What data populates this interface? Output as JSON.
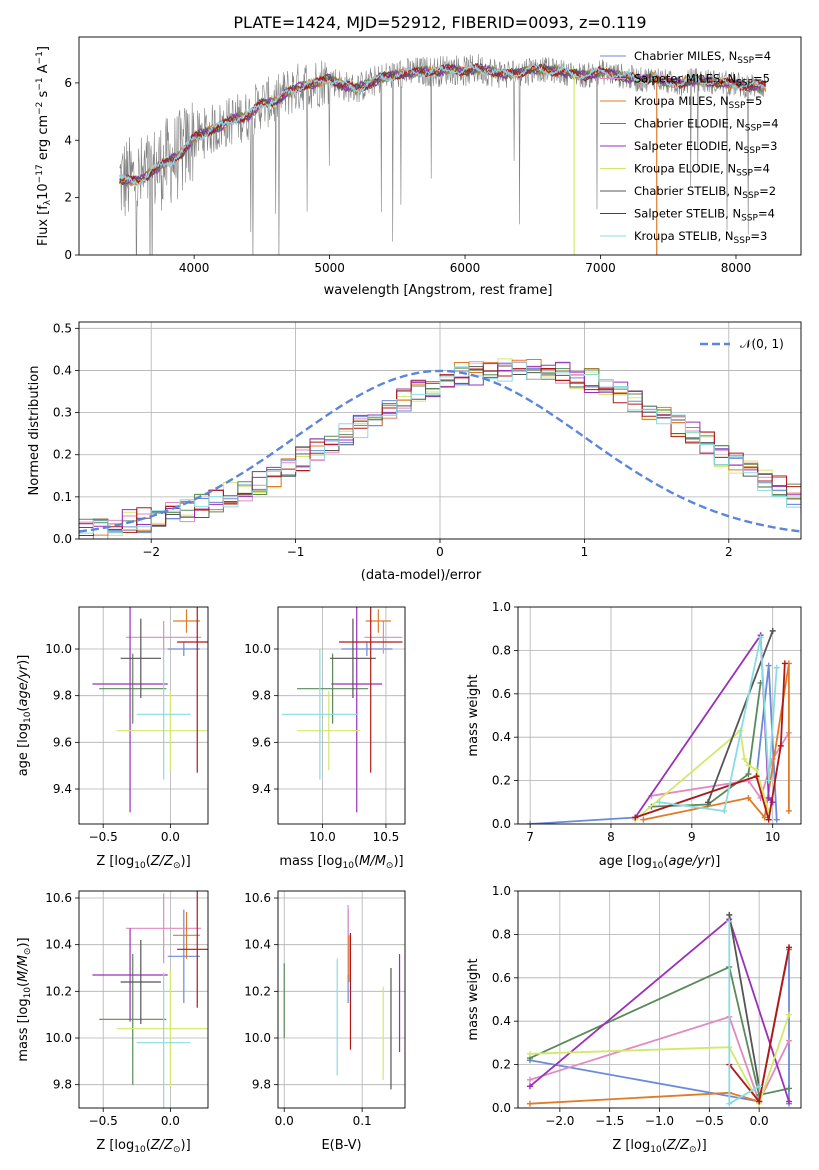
{
  "figure_title": "PLATE=1424, MJD=52912, FIBERID=0093, z=0.119",
  "colors": {
    "Chabrier MILES": "#6b8ad9",
    "Salpeter MILES": "#e28ac0",
    "Kroupa MILES": "#e07b28",
    "Chabrier ELODIE": "#5a8a5a",
    "Salpeter ELODIE": "#9b30b8",
    "Kroupa ELODIE": "#d4e86a",
    "Chabrier STELIB": "#555555",
    "Salpeter STELIB": "#b01818",
    "Kroupa STELIB": "#88dde0",
    "data": "#808080",
    "normal": "#5b86d9"
  },
  "chart_data": [
    {
      "id": "spectrum",
      "type": "line",
      "xlabel": "wavelength [Angstrom, rest frame]",
      "ylabel": "Flux [f",
      "xlim": [
        3150,
        8480
      ],
      "ylim": [
        0,
        7.6
      ],
      "xticks": [
        4000,
        5000,
        6000,
        7000,
        8000
      ],
      "yticks": [
        0,
        2,
        4,
        6
      ],
      "grid": false,
      "legend_position": "top-right",
      "legend": [
        {
          "model": "Chabrier MILES",
          "label": "Chabrier MILES, N",
          "n": "=4"
        },
        {
          "model": "Salpeter MILES",
          "label": "Salpeter MILES, N",
          "n": "=5"
        },
        {
          "model": "Kroupa MILES",
          "label": "Kroupa MILES, N",
          "n": "=5"
        },
        {
          "model": "Chabrier ELODIE",
          "label": "Chabrier ELODIE, N",
          "n": "=4"
        },
        {
          "model": "Salpeter ELODIE",
          "label": "Salpeter ELODIE, N",
          "n": "=3"
        },
        {
          "model": "Kroupa ELODIE",
          "label": "Kroupa ELODIE, N",
          "n": "=4"
        },
        {
          "model": "Chabrier STELIB",
          "label": "Chabrier STELIB, N",
          "n": "=2"
        },
        {
          "model": "Salpeter STELIB",
          "label": "Salpeter STELIB, N",
          "n": "=4"
        },
        {
          "model": "Kroupa STELIB",
          "label": "Kroupa STELIB, N",
          "n": "=3"
        }
      ],
      "model_curve": {
        "x": [
          3450,
          3600,
          3750,
          3900,
          4000,
          4100,
          4200,
          4300,
          4400,
          4500,
          4600,
          4700,
          4800,
          4900,
          5000,
          5100,
          5200,
          5300,
          5400,
          5500,
          5600,
          5700,
          5800,
          5900,
          6000,
          6100,
          6200,
          6300,
          6400,
          6500,
          6600,
          6700,
          6800,
          6900,
          7000,
          7100,
          7200,
          7300,
          7400,
          7500,
          7600,
          7700,
          7800,
          7900,
          8000,
          8100,
          8220
        ],
        "y": [
          2.6,
          2.6,
          3.1,
          3.5,
          4.1,
          4.3,
          4.5,
          4.75,
          4.85,
          5.3,
          5.35,
          5.7,
          5.9,
          6.0,
          6.15,
          5.9,
          5.8,
          6.0,
          6.2,
          6.3,
          6.35,
          6.4,
          6.4,
          6.5,
          6.4,
          6.5,
          6.4,
          6.3,
          6.35,
          6.5,
          6.45,
          6.4,
          6.3,
          6.25,
          6.4,
          6.3,
          6.2,
          6.1,
          6.2,
          6.0,
          6.0,
          6.1,
          6.05,
          6.0,
          5.95,
          5.9,
          5.9
        ]
      }
    },
    {
      "id": "residuals",
      "type": "line",
      "xlabel": "(data-model)/error",
      "ylabel": "Normed distribution",
      "xlim": [
        -2.5,
        2.5
      ],
      "ylim": [
        0,
        0.515
      ],
      "xticks": [
        -2,
        -1,
        0,
        1,
        2
      ],
      "yticks": [
        0.0,
        0.1,
        0.2,
        0.3,
        0.4,
        0.5
      ],
      "grid": true,
      "legend_position": "top-right",
      "legend_label": "N(0,1)",
      "bin_width": 0.1,
      "base_hist": [
        0.02,
        0.025,
        0.03,
        0.04,
        0.045,
        0.055,
        0.065,
        0.07,
        0.08,
        0.09,
        0.105,
        0.12,
        0.135,
        0.15,
        0.17,
        0.19,
        0.21,
        0.23,
        0.25,
        0.27,
        0.29,
        0.31,
        0.33,
        0.35,
        0.36,
        0.375,
        0.39,
        0.395,
        0.4,
        0.4,
        0.405,
        0.4,
        0.4,
        0.395,
        0.385,
        0.375,
        0.36,
        0.345,
        0.33,
        0.31,
        0.29,
        0.27,
        0.25,
        0.225,
        0.2,
        0.18,
        0.16,
        0.14,
        0.12,
        0.105,
        0.09
      ]
    },
    {
      "id": "age_vs_Z",
      "type": "scatter",
      "xlabel": "Z [log",
      "ylabel": "age  [log",
      "xlim": [
        -0.68,
        0.28
      ],
      "ylim": [
        9.25,
        10.18
      ],
      "xticks": [
        -0.5,
        0.0
      ],
      "yticks": [
        9.4,
        9.6,
        9.8,
        10.0
      ],
      "grid": true,
      "points": [
        {
          "m": "Chabrier MILES",
          "x": 0.1,
          "xerr": 0.12,
          "y": 10.0,
          "yerr": 0.03
        },
        {
          "m": "Salpeter MILES",
          "x": -0.05,
          "xerr": 0.28,
          "y": 10.05,
          "yerr": 0.07
        },
        {
          "m": "Kroupa MILES",
          "x": 0.12,
          "xerr": 0.1,
          "y": 10.12,
          "yerr": 0.05
        },
        {
          "m": "Chabrier ELODIE",
          "x": -0.28,
          "xerr": 0.25,
          "y": 9.83,
          "yerr": 0.15
        },
        {
          "m": "Salpeter ELODIE",
          "x": -0.3,
          "xerr": 0.28,
          "y": 9.85,
          "yerr": 0.55
        },
        {
          "m": "Kroupa ELODIE",
          "x": 0.0,
          "xerr": 0.4,
          "y": 9.65,
          "yerr": 0.17
        },
        {
          "m": "Chabrier STELIB",
          "x": -0.22,
          "xerr": 0.15,
          "y": 9.96,
          "yerr": 0.17
        },
        {
          "m": "Salpeter STELIB",
          "x": 0.2,
          "xerr": 0.15,
          "y": 10.03,
          "yerr": 0.56
        },
        {
          "m": "Kroupa STELIB",
          "x": -0.05,
          "xerr": 0.2,
          "y": 9.72,
          "yerr": 0.28
        }
      ]
    },
    {
      "id": "age_vs_mass",
      "type": "scatter",
      "xlabel": "mass [log",
      "ylabel": "",
      "xlim": [
        9.65,
        10.65
      ],
      "ylim": [
        9.25,
        10.18
      ],
      "xticks": [
        10.0,
        10.5
      ],
      "yticks": [
        9.4,
        9.6,
        9.8,
        10.0
      ],
      "grid": true,
      "points": [
        {
          "m": "Chabrier MILES",
          "x": 10.35,
          "xerr": 0.2,
          "y": 10.0,
          "yerr": 0.03
        },
        {
          "m": "Salpeter MILES",
          "x": 10.48,
          "xerr": 0.15,
          "y": 10.05,
          "yerr": 0.07
        },
        {
          "m": "Kroupa MILES",
          "x": 10.44,
          "xerr": 0.1,
          "y": 10.12,
          "yerr": 0.05
        },
        {
          "m": "Chabrier ELODIE",
          "x": 10.08,
          "xerr": 0.28,
          "y": 9.83,
          "yerr": 0.15
        },
        {
          "m": "Salpeter ELODIE",
          "x": 10.27,
          "xerr": 0.2,
          "y": 9.85,
          "yerr": 0.55
        },
        {
          "m": "Kroupa ELODIE",
          "x": 10.05,
          "xerr": 0.25,
          "y": 9.65,
          "yerr": 0.17
        },
        {
          "m": "Chabrier STELIB",
          "x": 10.24,
          "xerr": 0.18,
          "y": 9.96,
          "yerr": 0.17
        },
        {
          "m": "Salpeter STELIB",
          "x": 10.38,
          "xerr": 0.25,
          "y": 10.03,
          "yerr": 0.56
        },
        {
          "m": "Kroupa STELIB",
          "x": 9.98,
          "xerr": 0.3,
          "y": 9.72,
          "yerr": 0.28
        }
      ]
    },
    {
      "id": "mass_weight_vs_age",
      "type": "line",
      "xlabel": "age  [log",
      "ylabel": "mass weight",
      "xlim": [
        6.85,
        10.35
      ],
      "ylim": [
        0,
        1.0
      ],
      "xticks": [
        7,
        8,
        9,
        10
      ],
      "yticks": [
        0.0,
        0.2,
        0.4,
        0.6,
        0.8,
        1.0
      ],
      "grid": true,
      "series": [
        {
          "m": "Chabrier MILES",
          "x": [
            7.0,
            8.3,
            9.8,
            9.95,
            10.05
          ],
          "y": [
            0.0,
            0.03,
            0.22,
            0.73,
            0.02
          ]
        },
        {
          "m": "Salpeter MILES",
          "x": [
            8.5,
            9.7,
            9.85,
            10.0,
            10.2
          ],
          "y": [
            0.13,
            0.2,
            0.12,
            0.3,
            0.42
          ]
        },
        {
          "m": "Kroupa MILES",
          "x": [
            8.4,
            9.7,
            9.9,
            10.2,
            10.2
          ],
          "y": [
            0.02,
            0.12,
            0.03,
            0.74,
            0.06
          ]
        },
        {
          "m": "Chabrier ELODIE",
          "x": [
            8.5,
            9.2,
            9.7,
            9.85
          ],
          "y": [
            0.08,
            0.09,
            0.23,
            0.65
          ]
        },
        {
          "m": "Salpeter ELODIE",
          "x": [
            8.3,
            9.85,
            9.95,
            10.0
          ],
          "y": [
            0.03,
            0.87,
            0.12,
            0.1
          ]
        },
        {
          "m": "Kroupa ELODIE",
          "x": [
            8.3,
            9.6,
            9.65,
            9.7,
            9.8,
            9.95
          ],
          "y": [
            0.02,
            0.43,
            0.3,
            0.27,
            0.25,
            0.06
          ]
        },
        {
          "m": "Chabrier STELIB",
          "x": [
            9.2,
            10.0
          ],
          "y": [
            0.1,
            0.89
          ]
        },
        {
          "m": "Salpeter STELIB",
          "x": [
            8.3,
            9.8,
            9.95,
            10.1,
            10.15
          ],
          "y": [
            0.03,
            0.22,
            0.02,
            0.36,
            0.74
          ]
        },
        {
          "m": "Kroupa STELIB",
          "x": [
            8.6,
            9.4,
            9.85,
            9.95,
            10.05
          ],
          "y": [
            0.1,
            0.06,
            0.86,
            0.2,
            0.72
          ]
        }
      ]
    },
    {
      "id": "mass_vs_Z",
      "type": "scatter",
      "xlabel": "Z [log",
      "ylabel": "mass [log",
      "xlim": [
        -0.68,
        0.28
      ],
      "ylim": [
        9.7,
        10.63
      ],
      "xticks": [
        -0.5,
        0.0
      ],
      "yticks": [
        9.8,
        10.0,
        10.2,
        10.4,
        10.6
      ],
      "grid": true,
      "points": [
        {
          "m": "Chabrier MILES",
          "x": 0.1,
          "xerr": 0.12,
          "y": 10.35,
          "yerr": 0.2
        },
        {
          "m": "Salpeter MILES",
          "x": -0.05,
          "xerr": 0.28,
          "y": 10.47,
          "yerr": 0.15
        },
        {
          "m": "Kroupa MILES",
          "x": 0.12,
          "xerr": 0.1,
          "y": 10.44,
          "yerr": 0.1
        },
        {
          "m": "Chabrier ELODIE",
          "x": -0.28,
          "xerr": 0.25,
          "y": 10.08,
          "yerr": 0.28
        },
        {
          "m": "Salpeter ELODIE",
          "x": -0.3,
          "xerr": 0.28,
          "y": 10.27,
          "yerr": 0.2
        },
        {
          "m": "Kroupa ELODIE",
          "x": 0.0,
          "xerr": 0.4,
          "y": 10.04,
          "yerr": 0.25
        },
        {
          "m": "Chabrier STELIB",
          "x": -0.22,
          "xerr": 0.15,
          "y": 10.24,
          "yerr": 0.18
        },
        {
          "m": "Salpeter STELIB",
          "x": 0.2,
          "xerr": 0.15,
          "y": 10.38,
          "yerr": 0.25
        },
        {
          "m": "Kroupa STELIB",
          "x": -0.05,
          "xerr": 0.2,
          "y": 9.98,
          "yerr": 0.3
        }
      ]
    },
    {
      "id": "mass_vs_ebv",
      "type": "scatter",
      "xlabel": "E(B-V)",
      "ylabel": "",
      "xlim": [
        -0.008,
        0.155
      ],
      "ylim": [
        9.7,
        10.63
      ],
      "xticks": [
        0.0,
        0.1
      ],
      "yticks": [
        9.8,
        10.0,
        10.2,
        10.4,
        10.6
      ],
      "grid": true,
      "points": [
        {
          "m": "Chabrier MILES",
          "x": 0.082,
          "y": 10.35,
          "yerr": 0.2
        },
        {
          "m": "Salpeter MILES",
          "x": 0.082,
          "y": 10.42,
          "yerr": 0.15
        },
        {
          "m": "Kroupa MILES",
          "x": 0.083,
          "y": 10.34,
          "yerr": 0.1
        },
        {
          "m": "Chabrier ELODIE",
          "x": 0.0,
          "y": 10.16,
          "yerr": 0.16
        },
        {
          "m": "Salpeter ELODIE",
          "x": 0.148,
          "y": 10.15,
          "yerr": 0.21
        },
        {
          "m": "Kroupa ELODIE",
          "x": 0.127,
          "y": 10.02,
          "yerr": 0.2
        },
        {
          "m": "Chabrier STELIB",
          "x": 0.137,
          "y": 10.04,
          "yerr": 0.26
        },
        {
          "m": "Salpeter STELIB",
          "x": 0.085,
          "y": 10.2,
          "yerr": 0.25
        },
        {
          "m": "Kroupa STELIB",
          "x": 0.068,
          "y": 10.09,
          "yerr": 0.25
        }
      ]
    },
    {
      "id": "mass_weight_vs_Z",
      "type": "line",
      "xlabel": "Z [log",
      "ylabel": "mass weight",
      "xlim": [
        -2.42,
        0.42
      ],
      "ylim": [
        0,
        1.0
      ],
      "xticks": [
        -2.0,
        -1.5,
        -1.0,
        -0.5,
        0.0
      ],
      "yticks": [
        0.0,
        0.2,
        0.4,
        0.6,
        0.8,
        1.0
      ],
      "grid": true,
      "series": [
        {
          "m": "Chabrier MILES",
          "x": [
            -2.3,
            0.0,
            0.3,
            0.3
          ],
          "y": [
            0.22,
            0.03,
            0.73,
            0.02
          ]
        },
        {
          "m": "Salpeter MILES",
          "x": [
            -2.3,
            -0.3,
            0.0,
            0.3
          ],
          "y": [
            0.13,
            0.42,
            0.03,
            0.31
          ]
        },
        {
          "m": "Kroupa MILES",
          "x": [
            -2.3,
            -0.3,
            0.0,
            0.3
          ],
          "y": [
            0.02,
            0.07,
            0.03,
            0.74
          ]
        },
        {
          "m": "Chabrier ELODIE",
          "x": [
            -2.3,
            -0.3,
            0.0,
            0.3
          ],
          "y": [
            0.23,
            0.65,
            0.06,
            0.09
          ]
        },
        {
          "m": "Salpeter ELODIE",
          "x": [
            -2.3,
            -0.3,
            0.3
          ],
          "y": [
            0.1,
            0.87,
            0.03
          ]
        },
        {
          "m": "Kroupa ELODIE",
          "x": [
            -2.3,
            -0.3,
            0.0,
            0.3
          ],
          "y": [
            0.25,
            0.28,
            0.02,
            0.43
          ]
        },
        {
          "m": "Chabrier STELIB",
          "x": [
            -0.3,
            0.0
          ],
          "y": [
            0.89,
            0.1
          ]
        },
        {
          "m": "Salpeter STELIB",
          "x": [
            -0.3,
            0.0,
            0.3
          ],
          "y": [
            0.2,
            0.03,
            0.74
          ]
        },
        {
          "m": "Kroupa STELIB",
          "x": [
            -0.3,
            -0.3,
            0.0
          ],
          "y": [
            0.86,
            0.02,
            0.1
          ]
        }
      ]
    }
  ]
}
